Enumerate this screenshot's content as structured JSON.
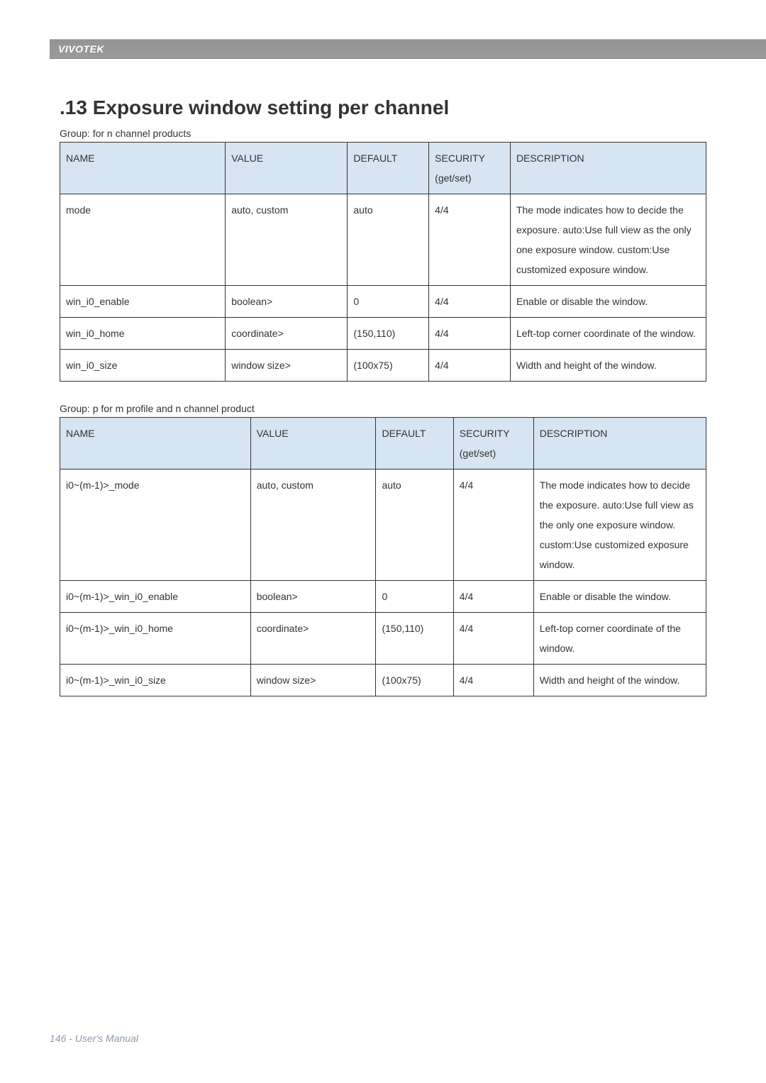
{
  "brand": "VIVOTEK",
  "section_title": ".13 Exposure window setting per channel",
  "group1_prefix": "Group:  ",
  "group1_glyph": "f",
  "group1_suffix": "or n channel products",
  "group2_prefix": "Group:  ",
  "group2_glyph": "p",
  "group2_suffix": "                                                              for m profile and n channel product",
  "headers": {
    "name": "NAME",
    "value": "VALUE",
    "default": "DEFAULT",
    "security": "SECURITY",
    "security_sub": "(get/set)",
    "description": "DESCRIPTION"
  },
  "table1": {
    "colwidths": [
      "25.6%",
      "18.9%",
      "12.6%",
      "12.6%",
      "30.3%"
    ],
    "rows": [
      {
        "name": "mode",
        "value": "auto, custom",
        "default": "auto",
        "security": "4/4",
        "description": "The mode indicates how to decide the exposure. auto:Use full view as the only one exposure window. custom:Use customized exposure window."
      },
      {
        "name": "win_i0_enable",
        "value": "boolean>",
        "default": "0",
        "security": "4/4",
        "description": "Enable or disable the window."
      },
      {
        "name": "win_i0_home",
        "value": "coordinate>",
        "default": "(150,110)",
        "security": "4/4",
        "description": "Left-top corner coordinate of the window."
      },
      {
        "name": "win_i0_size",
        "value": "window size>",
        "default": "(100x75)",
        "security": "4/4",
        "description": "Width and height of the window."
      }
    ]
  },
  "table2": {
    "colwidths": [
      "29.5%",
      "19.4%",
      "12.0%",
      "12.4%",
      "26.7%"
    ],
    "rows": [
      {
        "name": "i0~(m-1)>_mode",
        "value": "auto, custom",
        "default": "auto",
        "security": "4/4",
        "description": "The mode indicates how to decide the exposure. auto:Use full view as the only one exposure window. custom:Use customized exposure window."
      },
      {
        "name": "i0~(m-1)>_win_i0_enable",
        "value": "boolean>",
        "default": "0",
        "security": "4/4",
        "description": "Enable or disable the window."
      },
      {
        "name": "i0~(m-1)>_win_i0_home",
        "value": "coordinate>",
        "default": "(150,110)",
        "security": "4/4",
        "description": "Left-top corner coordinate of the window."
      },
      {
        "name": "i0~(m-1)>_win_i0_size",
        "value": "window size>",
        "default": "(100x75)",
        "security": "4/4",
        "description": "Width and height of the window."
      }
    ]
  },
  "footer": "146 - User's Manual",
  "colors": {
    "header_bg": "#d7e4f2",
    "border": "#333333",
    "text": "#333333",
    "footer_text": "#8e9aae",
    "strip_bg": "#949494"
  },
  "typography": {
    "title_fontsize": 28,
    "body_fontsize": 14,
    "brand_fontsize": 14
  }
}
